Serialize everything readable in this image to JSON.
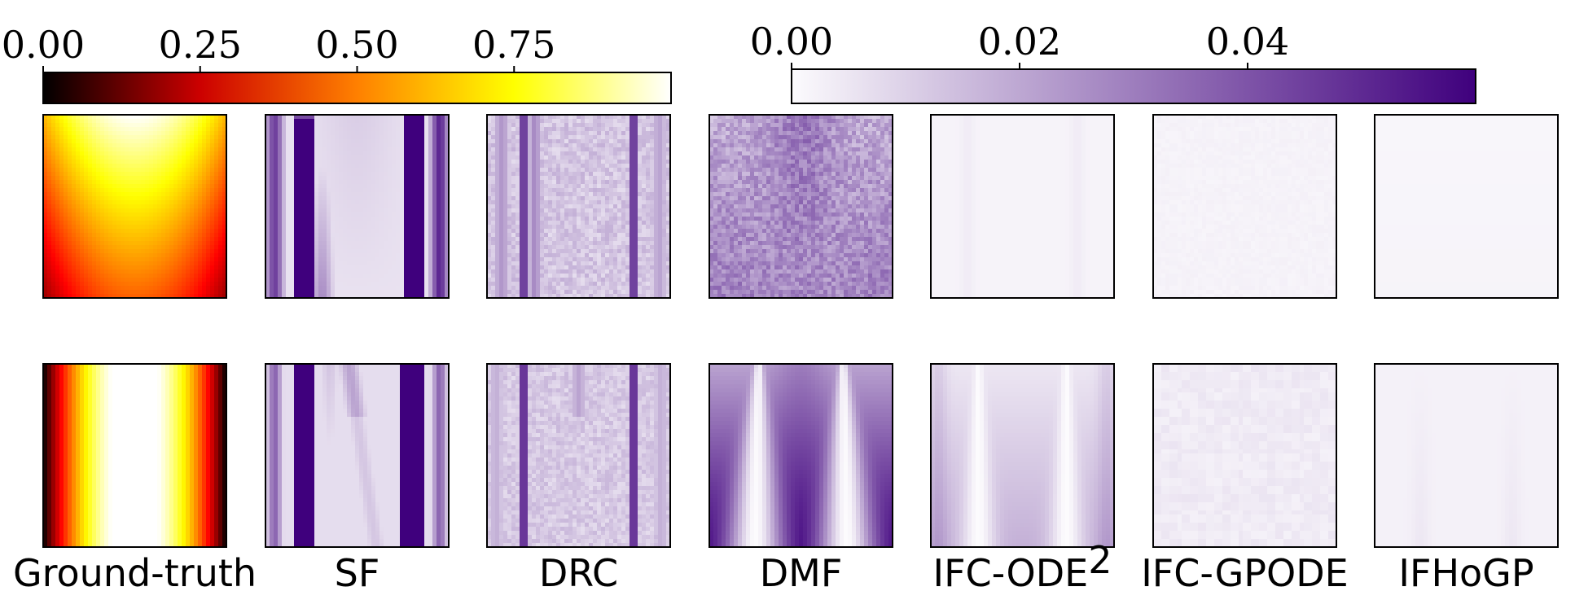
{
  "chart_data": {
    "type": "heatmap",
    "colorbars": [
      {
        "colormap": "hot",
        "colors": [
          "#000000",
          "#cc0000",
          "#ff8000",
          "#ffff00",
          "#ffffff"
        ],
        "range": [
          0,
          1
        ],
        "ticks": [
          0,
          0.25,
          0.5,
          0.75
        ],
        "tick_labels": [
          "0.00",
          "0.25",
          "0.50",
          "0.75"
        ]
      },
      {
        "colormap": "Purples",
        "colors": [
          "#fcfbfd",
          "#3f007d"
        ],
        "range": [
          0,
          0.06
        ],
        "ticks": [
          0,
          0.02,
          0.04
        ],
        "tick_labels": [
          "0.00",
          "0.02",
          "0.04"
        ]
      }
    ],
    "columns": [
      {
        "label": "Ground-truth",
        "label_sup": ""
      },
      {
        "label": "SF",
        "label_sup": ""
      },
      {
        "label": "DRC",
        "label_sup": ""
      },
      {
        "label": "DMF",
        "label_sup": ""
      },
      {
        "label": "IFC-ODE",
        "label_sup": "2"
      },
      {
        "label": "IFC-GPODE",
        "label_sup": ""
      },
      {
        "label": "IFHoGP",
        "label_sup": ""
      }
    ],
    "rows": [
      {
        "ground_truth_colormap": "hot",
        "error_colormap": "Purples",
        "panels": {
          "Ground-truth": "peak 1.0 at top-center, decays downward; ~0.55 at bottom",
          "SF": "two dark vertical bands near the left and right edges, light interior",
          "DRC": "narrow dark streaks near edges, faint speckled interior",
          "DMF": "moderate noisy error, stronger along edges and bottom",
          "IFC-ODE": "near-zero error with faint vertical streaks",
          "IFC-GPODE": "near-zero uniform error",
          "IFHoGP": "near-zero uniform error"
        }
      },
      {
        "ground_truth_colormap": "hot",
        "error_colormap": "Purples",
        "panels": {
          "Ground-truth": "bright vertical band in center, dark at left and right edges",
          "SF": "two dark vertical bands near edges, faint arcs in the middle",
          "DRC": "narrow dark streaks near edges, light speckled interior",
          "DMF": "large error: dark bottom and sides with two white rising wedges",
          "IFC-ODE": "small error, light-purple bottom with two faint white wedges",
          "IFC-GPODE": "near-zero faint dotted error",
          "IFHoGP": "near-zero error with faint wedge outlines"
        }
      }
    ]
  }
}
